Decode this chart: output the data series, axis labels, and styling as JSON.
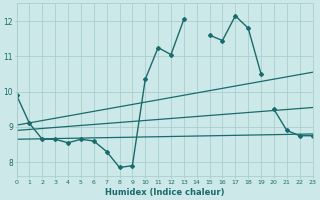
{
  "background_color": "#cce8e8",
  "grid_color": "#aacece",
  "line_color": "#1a6b6b",
  "x_label": "Humidex (Indice chaleur)",
  "y_ticks": [
    8,
    9,
    10,
    11,
    12
  ],
  "x_min": 0,
  "x_max": 23,
  "y_min": 7.6,
  "y_max": 12.5,
  "series": [
    {
      "x": [
        0,
        1,
        2,
        3,
        4,
        5,
        6,
        7,
        8,
        9,
        10,
        11,
        12,
        13,
        14,
        15,
        16,
        17,
        18,
        19,
        20,
        21,
        22,
        23
      ],
      "y": [
        9.9,
        9.1,
        8.65,
        8.65,
        8.55,
        8.65,
        8.6,
        8.3,
        7.85,
        7.9,
        10.35,
        11.25,
        11.05,
        12.05,
        null,
        11.6,
        11.45,
        12.15,
        11.8,
        10.5,
        null,
        null,
        null,
        null
      ],
      "marker": "D",
      "markersize": 2.0,
      "linewidth": 1.0
    },
    {
      "x": [
        20,
        21,
        22,
        23
      ],
      "y": [
        9.5,
        8.9,
        8.75,
        8.75
      ],
      "marker": "D",
      "markersize": 2.0,
      "linewidth": 1.0
    },
    {
      "x": [
        0,
        23
      ],
      "y": [
        8.65,
        8.8
      ],
      "marker": null,
      "markersize": 0,
      "linewidth": 0.9
    },
    {
      "x": [
        0,
        23
      ],
      "y": [
        8.9,
        9.55
      ],
      "marker": null,
      "markersize": 0,
      "linewidth": 0.9
    },
    {
      "x": [
        0,
        23
      ],
      "y": [
        9.05,
        10.55
      ],
      "marker": null,
      "markersize": 0,
      "linewidth": 0.9
    }
  ]
}
